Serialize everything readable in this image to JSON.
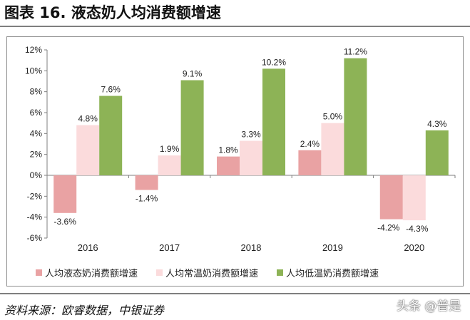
{
  "title": "图表 16. 液态奶人均消费额增速",
  "source": "资料来源：欧睿数据，中银证券",
  "watermark": "头条 @普是",
  "chart_data": {
    "type": "bar",
    "categories": [
      "2016",
      "2017",
      "2018",
      "2019",
      "2020"
    ],
    "yticks": [
      "12%",
      "10%",
      "8%",
      "6%",
      "4%",
      "2%",
      "0%",
      "-2%",
      "-4%",
      "-6%"
    ],
    "ylim": [
      -6,
      12
    ],
    "grid": false,
    "legend_position": "bottom",
    "series": [
      {
        "name": "人均液态奶消费额增速",
        "color": "#e9a2a3",
        "values": [
          -3.6,
          -1.4,
          1.8,
          2.4,
          -4.2
        ],
        "labels": [
          "-3.6%",
          "-1.4%",
          "1.8%",
          "2.4%",
          "-4.2%"
        ]
      },
      {
        "name": "人均常温奶消费额增速",
        "color": "#fbdbdc",
        "values": [
          4.8,
          1.9,
          3.3,
          5.0,
          -4.3
        ],
        "labels": [
          "4.8%",
          "1.9%",
          "3.3%",
          "5.0%",
          "-4.3%"
        ]
      },
      {
        "name": "人均低温奶消费额增速",
        "color": "#8db356",
        "values": [
          7.6,
          9.1,
          10.2,
          11.2,
          4.3
        ],
        "labels": [
          "7.6%",
          "9.1%",
          "10.2%",
          "11.2%",
          "4.3%"
        ]
      }
    ]
  }
}
